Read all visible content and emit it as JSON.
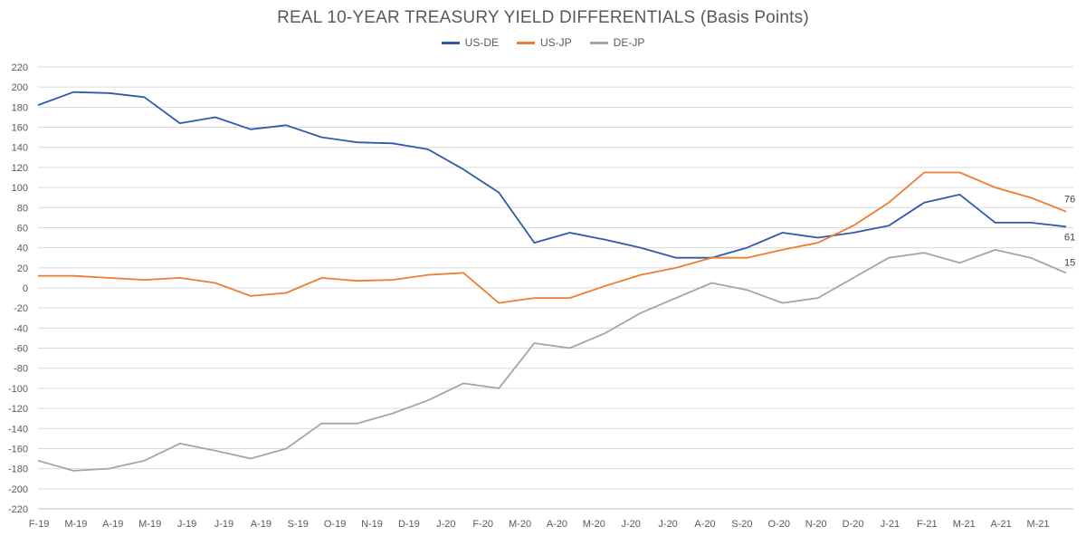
{
  "chart_data": {
    "type": "line",
    "title": "REAL 10-YEAR TREASURY YIELD DIFFERENTIALS (Basis Points)",
    "xlabel": "",
    "ylabel": "",
    "ylim": [
      -220,
      220
    ],
    "y_ticks": [
      220,
      200,
      180,
      160,
      140,
      120,
      100,
      80,
      60,
      40,
      20,
      0,
      -20,
      -40,
      -60,
      -80,
      -100,
      -120,
      -140,
      -160,
      -180,
      -200,
      -220
    ],
    "x_tick_labels": [
      "F-19",
      "M-19",
      "A-19",
      "M-19",
      "J-19",
      "J-19",
      "A-19",
      "S-19",
      "O-19",
      "N-19",
      "D-19",
      "J-20",
      "F-20",
      "M-20",
      "A-20",
      "M-20",
      "J-20",
      "J-20",
      "A-20",
      "S-20",
      "O-20",
      "N-20",
      "D-20",
      "J-21",
      "F-21",
      "M-21",
      "A-21",
      "M-21"
    ],
    "grid": true,
    "legend_position": "top",
    "x": [
      "2019-02",
      "2019-03",
      "2019-04",
      "2019-05",
      "2019-06",
      "2019-07",
      "2019-08",
      "2019-09",
      "2019-10",
      "2019-11",
      "2019-12",
      "2020-01",
      "2020-02",
      "2020-03a",
      "2020-03b",
      "2020-04",
      "2020-05",
      "2020-06",
      "2020-07",
      "2020-08",
      "2020-09",
      "2020-10",
      "2020-11",
      "2020-12",
      "2021-01",
      "2021-02",
      "2021-03",
      "2021-04",
      "2021-05",
      "2021-06"
    ],
    "series": [
      {
        "name": "US-DE",
        "color": "#2e5aac",
        "values": [
          182,
          195,
          194,
          190,
          164,
          170,
          158,
          162,
          150,
          145,
          144,
          138,
          118,
          95,
          45,
          55,
          48,
          40,
          30,
          30,
          40,
          55,
          50,
          55,
          62,
          85,
          93,
          65,
          65,
          61
        ]
      },
      {
        "name": "US-JP",
        "color": "#ed7d31",
        "values": [
          12,
          12,
          10,
          8,
          10,
          5,
          -8,
          -5,
          10,
          7,
          8,
          13,
          15,
          -15,
          -10,
          -10,
          2,
          13,
          20,
          30,
          30,
          38,
          45,
          62,
          85,
          115,
          115,
          100,
          90,
          76
        ]
      },
      {
        "name": "DE-JP",
        "color": "#a5a5a5",
        "values": [
          -172,
          -182,
          -180,
          -172,
          -155,
          -162,
          -170,
          -160,
          -135,
          -135,
          -125,
          -112,
          -95,
          -100,
          -55,
          -60,
          -45,
          -25,
          -10,
          5,
          -2,
          -15,
          -10,
          10,
          30,
          35,
          25,
          38,
          30,
          15
        ]
      }
    ],
    "end_labels": [
      {
        "series": "US-JP",
        "text": "76"
      },
      {
        "series": "US-DE",
        "text": "61"
      },
      {
        "series": "DE-JP",
        "text": "15"
      }
    ]
  }
}
